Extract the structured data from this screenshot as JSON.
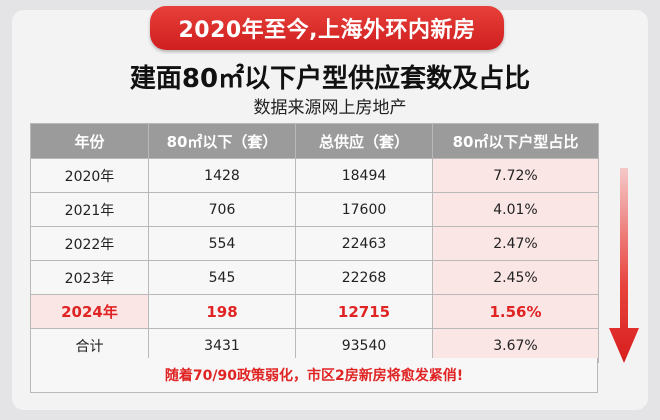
{
  "banner": "2020年至今,上海外环内新房",
  "title": "建面80㎡以下户型供应套数及占比",
  "subtitle": "数据来源网上房地产",
  "table": {
    "headers": [
      "年份",
      "80㎡以下（套）",
      "总供应（套）",
      "80㎡以下户型占比"
    ],
    "rows": [
      [
        "2020年",
        "1428",
        "18494",
        "7.72%"
      ],
      [
        "2021年",
        "706",
        "17600",
        "4.01%"
      ],
      [
        "2022年",
        "554",
        "22463",
        "2.47%"
      ],
      [
        "2023年",
        "545",
        "22268",
        "2.45%"
      ],
      [
        "2024年",
        "198",
        "12715",
        "1.56%"
      ],
      [
        "合计",
        "3431",
        "93540",
        "3.67%"
      ]
    ],
    "highlight_row": 4
  },
  "note": "随着70/90政策弱化，市区2房新房将愈发紧俏!",
  "colors": {
    "accent": "#e02424",
    "header_bg": "#9b9b9b",
    "pct_bg": "#fbe6e6"
  },
  "icons": [
    "down-arrow-icon"
  ]
}
